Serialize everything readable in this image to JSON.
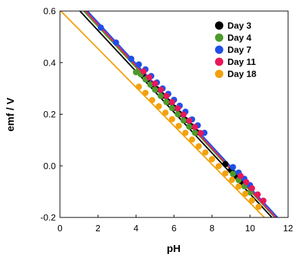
{
  "chart_data": {
    "type": "scatter",
    "title": "",
    "xlabel": "pH",
    "ylabel": "emf / V",
    "xlim": [
      0,
      12
    ],
    "ylim": [
      -0.2,
      0.6
    ],
    "x_ticks": [
      0,
      2,
      4,
      6,
      8,
      10,
      12
    ],
    "y_ticks": [
      -0.2,
      0.0,
      0.2,
      0.4,
      0.6
    ],
    "x_tick_labels": [
      "0",
      "2",
      "4",
      "6",
      "8",
      "10",
      "12"
    ],
    "y_tick_labels": [
      "-0.2",
      "0.0",
      "0.2",
      "0.4",
      "0.6"
    ],
    "grid": false,
    "legend_position": "top-right",
    "series": [
      {
        "name": "Day 3",
        "color": "#000000",
        "fit_line": [
          [
            1.05,
            0.6
          ],
          [
            11.15,
            -0.2
          ]
        ],
        "x": [
          4.35,
          4.6,
          4.85,
          5.1,
          5.4,
          5.7,
          6.0,
          6.3,
          6.6,
          6.9,
          7.2,
          8.7,
          9.0,
          9.3,
          9.6
        ],
        "y": [
          0.356,
          0.336,
          0.316,
          0.297,
          0.272,
          0.248,
          0.225,
          0.201,
          0.178,
          0.154,
          0.13,
          0.007,
          -0.017,
          -0.041,
          -0.066
        ]
      },
      {
        "name": "Day 4",
        "color": "#4c9a2a",
        "fit_line": [
          [
            1.25,
            0.6
          ],
          [
            11.3,
            -0.2
          ]
        ],
        "x": [
          4.0,
          4.25,
          4.5,
          4.75,
          5.0,
          5.3,
          5.6,
          5.9,
          6.2,
          6.5,
          6.8,
          7.1,
          9.1,
          9.4,
          9.7,
          10.0
        ],
        "y": [
          0.363,
          0.355,
          0.335,
          0.315,
          0.295,
          0.271,
          0.247,
          0.224,
          0.2,
          0.176,
          0.152,
          0.128,
          -0.031,
          -0.055,
          -0.079,
          -0.103
        ]
      },
      {
        "name": "Day 7",
        "color": "#1f4fe8",
        "fit_line": [
          [
            1.45,
            0.6
          ],
          [
            11.45,
            -0.2
          ]
        ],
        "x": [
          2.15,
          2.95,
          3.75,
          4.15,
          4.5,
          4.8,
          5.1,
          5.4,
          5.7,
          6.0,
          6.3,
          6.6,
          6.95,
          7.25,
          7.6,
          9.1,
          9.4,
          9.7,
          10.0
        ],
        "y": [
          0.536,
          0.478,
          0.415,
          0.393,
          0.374,
          0.348,
          0.323,
          0.3,
          0.279,
          0.256,
          0.233,
          0.21,
          0.18,
          0.157,
          0.128,
          -0.005,
          -0.026,
          -0.05,
          -0.075
        ]
      },
      {
        "name": "Day 11",
        "color": "#e8185a",
        "fit_line": [
          [
            1.35,
            0.6
          ],
          [
            11.35,
            -0.2
          ]
        ],
        "x": [
          4.4,
          4.7,
          5.0,
          5.3,
          5.6,
          5.9,
          6.2,
          6.5,
          6.8,
          7.1,
          7.4,
          9.5,
          9.8,
          10.1,
          10.4,
          10.7
        ],
        "y": [
          0.366,
          0.343,
          0.319,
          0.295,
          0.271,
          0.247,
          0.223,
          0.199,
          0.175,
          0.151,
          0.127,
          -0.039,
          -0.063,
          -0.087,
          -0.111,
          -0.135
        ]
      },
      {
        "name": "Day 18",
        "color": "#f2a20e",
        "fit_line": [
          [
            0.05,
            0.6
          ],
          [
            10.75,
            -0.2
          ]
        ],
        "x": [
          4.15,
          4.5,
          4.85,
          5.2,
          5.55,
          5.9,
          6.25,
          6.6,
          6.95,
          7.3,
          7.65,
          8.0,
          8.35,
          8.7,
          9.05,
          9.4,
          9.75,
          10.1,
          10.45
        ],
        "y": [
          0.307,
          0.283,
          0.255,
          0.231,
          0.206,
          0.181,
          0.155,
          0.128,
          0.102,
          0.076,
          0.052,
          0.026,
          -0.001,
          -0.029,
          -0.054,
          -0.08,
          -0.108,
          -0.134,
          -0.159
        ]
      }
    ]
  }
}
